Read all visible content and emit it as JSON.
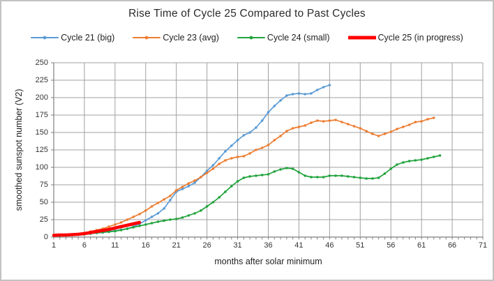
{
  "figure": {
    "title": "Rise Time of Cycle 25 Compared to Past Cycles",
    "background_color": "#FFFFFF",
    "border_color": "#C2C2C2",
    "gridline_color": "#A0A0A0",
    "axis_color": "#7F7F7F",
    "tick_label_color": "#333333"
  },
  "chart_data": {
    "type": "line",
    "title": "Rise Time of Cycle 25 Compared to Past Cycles",
    "xlabel": "months after solar minimum",
    "ylabel": "smoothed sunspot number (V2)",
    "xlim": [
      1,
      71
    ],
    "ylim": [
      0,
      250
    ],
    "x_ticks": [
      1,
      6,
      11,
      16,
      21,
      26,
      31,
      36,
      41,
      46,
      51,
      56,
      61,
      66,
      71
    ],
    "y_ticks": [
      0,
      25,
      50,
      75,
      100,
      125,
      150,
      175,
      200,
      225,
      250
    ],
    "grid": true,
    "legend_position": "top",
    "x_is_months_from": 1,
    "series": [
      {
        "name": "Cycle 21 (big)",
        "color": "#5B9BD5",
        "style": "line-markers",
        "values": [
          2,
          2.5,
          3,
          3,
          3.5,
          4,
          5,
          6,
          6.5,
          8,
          9,
          10.5,
          12,
          15,
          19,
          24,
          29,
          34,
          41,
          53,
          65,
          69,
          73,
          78,
          86,
          95,
          103,
          113,
          123,
          131,
          139,
          146,
          150,
          157,
          167,
          179,
          188,
          196,
          203,
          205,
          206,
          205,
          206,
          211,
          215,
          218
        ]
      },
      {
        "name": "Cycle 23 (avg)",
        "color": "#ED7D31",
        "style": "line-markers",
        "values": [
          2,
          2,
          3,
          3,
          4,
          6,
          8,
          10,
          12,
          15,
          18,
          21,
          25,
          29,
          33,
          38,
          44,
          49,
          54,
          59,
          67,
          72,
          77,
          81,
          86,
          92,
          98,
          105,
          110,
          113,
          115,
          116,
          120,
          125,
          128,
          132,
          139,
          145,
          152,
          156,
          158,
          160,
          164,
          167,
          166,
          167,
          168,
          165,
          162,
          159,
          156,
          152,
          148,
          145,
          148,
          151,
          155,
          158,
          161,
          165,
          166,
          169,
          171
        ]
      },
      {
        "name": "Cycle 24 (small)",
        "color": "#21A33C",
        "style": "line-markers",
        "values": [
          2,
          2,
          2.5,
          3,
          3.5,
          4,
          5,
          6,
          7,
          7.5,
          8.5,
          10,
          12,
          14,
          16,
          18,
          20,
          22,
          23.5,
          25,
          26,
          28,
          31,
          34,
          38,
          44,
          50,
          57,
          65,
          73,
          80,
          85,
          87,
          88,
          89,
          90,
          94,
          97,
          99,
          98,
          93,
          88,
          86,
          86,
          86,
          88,
          88,
          88,
          87,
          86,
          85,
          84,
          84,
          85,
          91,
          98,
          104,
          107,
          109,
          110,
          111,
          113,
          115,
          117
        ]
      },
      {
        "name": "Cycle 25 (in progress)",
        "color": "#FF0000",
        "style": "thick-line",
        "values": [
          2.5,
          3,
          3,
          3.5,
          4,
          5,
          6.5,
          8,
          9.5,
          11,
          13,
          15,
          17,
          19,
          21
        ]
      }
    ]
  }
}
